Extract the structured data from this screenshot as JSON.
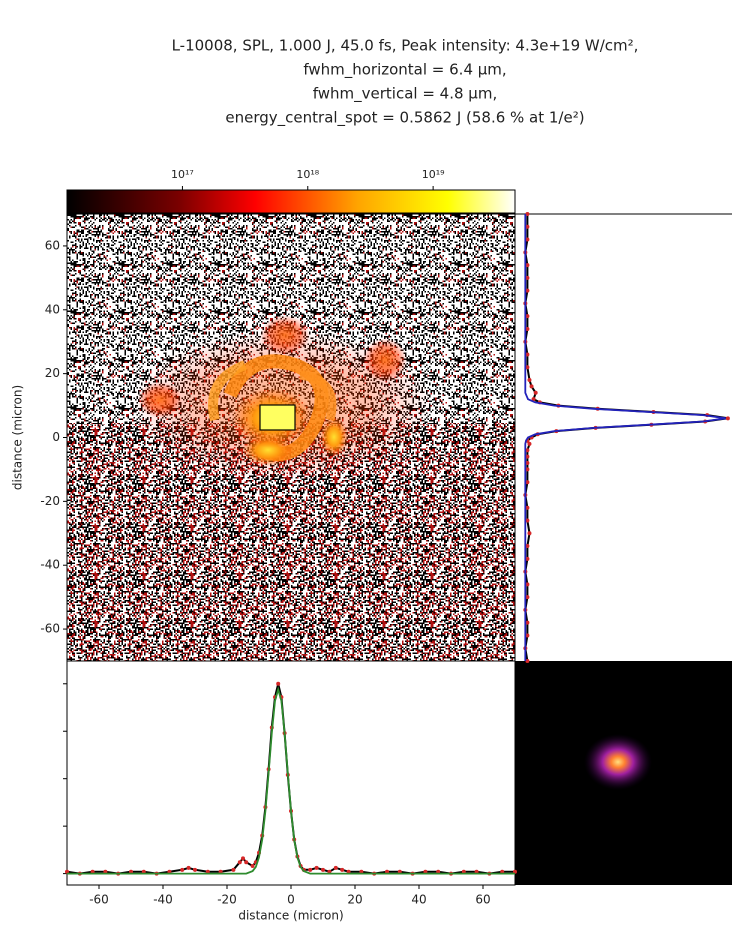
{
  "chart_data": [
    {
      "type": "heatmap",
      "title": [
        "L-10008, SPL, 1.000 J, 45.0 fs, Peak intensity: 4.3e+19 W/cm²,",
        "fwhm_horizontal = 6.4 μm,",
        "fwhm_vertical = 4.8 μm,",
        "energy_central_spot = 0.5862 J (58.6 % at 1/e²)"
      ],
      "ylabel": "distance (micron)",
      "xlim": [
        -70,
        70
      ],
      "ylim": [
        -70,
        70
      ],
      "yticks": [
        -60,
        -40,
        -20,
        0,
        20,
        40,
        60
      ],
      "colorbar": {
        "scale": "log",
        "lim": [
          1.2e+16,
          4.5e+19
        ],
        "ticks": [
          {
            "value": 1e+17,
            "label": "10¹⁷"
          },
          {
            "value": 1e+18,
            "label": "10¹⁸"
          },
          {
            "value": 1e+19,
            "label": "10¹⁹"
          }
        ]
      }
    },
    {
      "type": "line",
      "orientation": "horizontal",
      "xlabel": "distance (micron)",
      "x": [
        -70,
        -66,
        -62,
        -58,
        -54,
        -50,
        -46,
        -42,
        -38,
        -34,
        -32,
        -30,
        -26,
        -22,
        -18,
        -16,
        -15,
        -14,
        -12,
        -11,
        -10,
        -9,
        -8,
        -7,
        -6,
        -5,
        -4,
        -3,
        -2,
        -1,
        0,
        1,
        2,
        3,
        4,
        6,
        8,
        10,
        12,
        14,
        16,
        18,
        22,
        26,
        30,
        34,
        38,
        42,
        46,
        50,
        54,
        58,
        62,
        66,
        70
      ],
      "series": [
        {
          "color": "#d62728",
          "line_color": "#000000",
          "marker": true,
          "values": [
            0.01,
            0.0,
            0.01,
            0.01,
            0.0,
            0.01,
            0.01,
            0.0,
            0.01,
            0.02,
            0.03,
            0.02,
            0.01,
            0.01,
            0.02,
            0.06,
            0.08,
            0.06,
            0.04,
            0.06,
            0.11,
            0.2,
            0.35,
            0.55,
            0.77,
            0.93,
            1.0,
            0.93,
            0.74,
            0.52,
            0.33,
            0.18,
            0.09,
            0.04,
            0.02,
            0.02,
            0.03,
            0.02,
            0.01,
            0.03,
            0.02,
            0.01,
            0.01,
            0.0,
            0.01,
            0.01,
            0.0,
            0.01,
            0.01,
            0.0,
            0.01,
            0.01,
            0.0,
            0.01,
            0.01
          ]
        },
        {
          "color": "#2e8b2e",
          "marker": false,
          "values": [
            0,
            0,
            0,
            0,
            0,
            0,
            0,
            0,
            0,
            0,
            0,
            0,
            0,
            0,
            0,
            0,
            0,
            0,
            0.013,
            0.035,
            0.086,
            0.178,
            0.33,
            0.53,
            0.74,
            0.91,
            0.97,
            0.91,
            0.74,
            0.53,
            0.33,
            0.178,
            0.086,
            0.035,
            0.013,
            0,
            0,
            0,
            0,
            0,
            0,
            0,
            0,
            0,
            0,
            0,
            0,
            0,
            0,
            0,
            0,
            0,
            0,
            0,
            0
          ]
        }
      ],
      "xlim": [
        -70,
        70
      ],
      "ylim": [
        -0.06,
        1.12
      ],
      "xticks": [
        -60,
        -40,
        -20,
        0,
        20,
        40,
        60
      ],
      "yticks": [
        0,
        0.25,
        0.5,
        0.75,
        1
      ]
    },
    {
      "type": "line",
      "orientation": "vertical",
      "y": [
        -70,
        -66,
        -62,
        -58,
        -54,
        -50,
        -46,
        -42,
        -38,
        -34,
        -30,
        -26,
        -22,
        -18,
        -14,
        -10,
        -8,
        -6,
        -4,
        -2,
        -1,
        0,
        1,
        2,
        3,
        4,
        5,
        6,
        7,
        8,
        9,
        10,
        11,
        12,
        14,
        16,
        18,
        22,
        26,
        30,
        34,
        38,
        42,
        46,
        50,
        54,
        58,
        62,
        66,
        70
      ],
      "series": [
        {
          "color": "#d62728",
          "line_color": "#000000",
          "marker": true,
          "values": [
            0.01,
            0.0,
            0.01,
            0.01,
            0.0,
            0.01,
            0.01,
            0.0,
            0.01,
            0.01,
            0.02,
            0.01,
            0.01,
            0.0,
            0.01,
            0.01,
            0.01,
            0.01,
            0.01,
            0.02,
            0.01,
            0.03,
            0.06,
            0.15,
            0.34,
            0.61,
            0.87,
            0.98,
            0.88,
            0.62,
            0.35,
            0.16,
            0.07,
            0.04,
            0.05,
            0.03,
            0.02,
            0.01,
            0.01,
            0.0,
            0.01,
            0.01,
            0.0,
            0.01,
            0.01,
            0.01,
            0.0,
            0.01,
            0.01,
            0.01
          ]
        },
        {
          "color": "#2222bb",
          "marker": false,
          "values": [
            0,
            0,
            0,
            0,
            0,
            0,
            0,
            0,
            0,
            0,
            0,
            0,
            0,
            0,
            0,
            0,
            0,
            0,
            0,
            0,
            0.003,
            0.013,
            0.048,
            0.14,
            0.33,
            0.6,
            0.86,
            0.97,
            0.86,
            0.6,
            0.33,
            0.14,
            0.048,
            0.013,
            0,
            0,
            0,
            0,
            0,
            0,
            0,
            0,
            0,
            0,
            0,
            0,
            0,
            0,
            0,
            0
          ]
        }
      ],
      "xlim": [
        -0.05,
        1.0
      ],
      "ylim": [
        -70,
        70
      ]
    }
  ]
}
